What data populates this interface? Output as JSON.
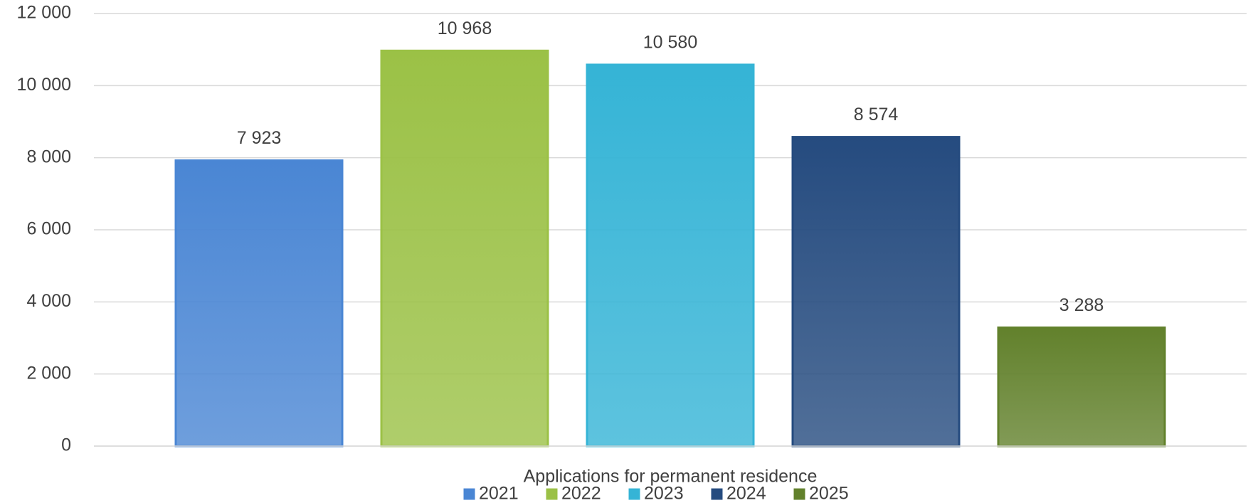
{
  "chart_data": {
    "type": "bar",
    "categories": [
      "Applications for permanent residence"
    ],
    "series": [
      {
        "name": "2021",
        "color": "#4a86d4",
        "values": [
          7923
        ],
        "value_labels": [
          "7 923"
        ]
      },
      {
        "name": "2022",
        "color": "#9bc146",
        "values": [
          10968
        ],
        "value_labels": [
          "10 968"
        ]
      },
      {
        "name": "2023",
        "color": "#35b4d6",
        "values": [
          10580
        ],
        "value_labels": [
          "10 580"
        ]
      },
      {
        "name": "2024",
        "color": "#254b7f",
        "values": [
          8574
        ],
        "value_labels": [
          "8 574"
        ]
      },
      {
        "name": "2025",
        "color": "#62812c",
        "values": [
          3288
        ],
        "value_labels": [
          "3 288"
        ]
      }
    ],
    "ylim": [
      0,
      12000
    ],
    "yticks": [
      0,
      {
        "value": 2000,
        "label": "2 000"
      },
      {
        "value": 4000,
        "label": "4 000"
      },
      {
        "value": 6000,
        "label": "6 000"
      },
      {
        "value": 8000,
        "label": "8 000"
      },
      {
        "value": 10000,
        "label": "10 000"
      },
      {
        "value": 12000,
        "label": "12 000"
      }
    ],
    "grid": true,
    "legend": "bottom"
  }
}
